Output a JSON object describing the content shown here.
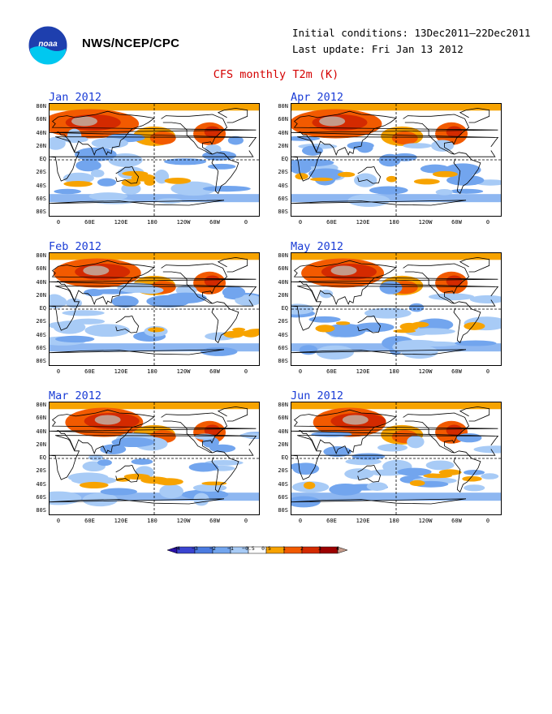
{
  "header": {
    "agency": "NWS/NCEP/CPC",
    "initial_conditions": "Initial conditions: 13Dec2011–22Dec2011",
    "last_update": "Last update: Fri Jan 13 2012",
    "title": "CFS monthly T2m (K)"
  },
  "logo": {
    "icon": "noaa-logo-icon",
    "text": "noaa"
  },
  "lat_labels": [
    "80N",
    "60N",
    "40N",
    "20N",
    "EQ",
    "20S",
    "40S",
    "60S",
    "80S"
  ],
  "lon_labels": [
    "0",
    "60E",
    "120E",
    "180",
    "120W",
    "60W",
    "0"
  ],
  "panels": [
    {
      "title": "Jan 2012"
    },
    {
      "title": "Apr 2012"
    },
    {
      "title": "Feb 2012"
    },
    {
      "title": "May 2012"
    },
    {
      "title": "Mar 2012"
    },
    {
      "title": "Jun 2012"
    }
  ],
  "colorbar": {
    "labels": [
      "−4",
      "−3",
      "−2",
      "−1",
      "−0.5",
      "0.5",
      "1",
      "2",
      "3",
      "4"
    ],
    "colors": [
      "#2a10a8",
      "#3a44d0",
      "#4b7be0",
      "#72a5ee",
      "#a8cbf6",
      "#ffffff",
      "#f7a300",
      "#f25a00",
      "#d42a00",
      "#9c0000",
      "#c49a8a"
    ]
  }
}
